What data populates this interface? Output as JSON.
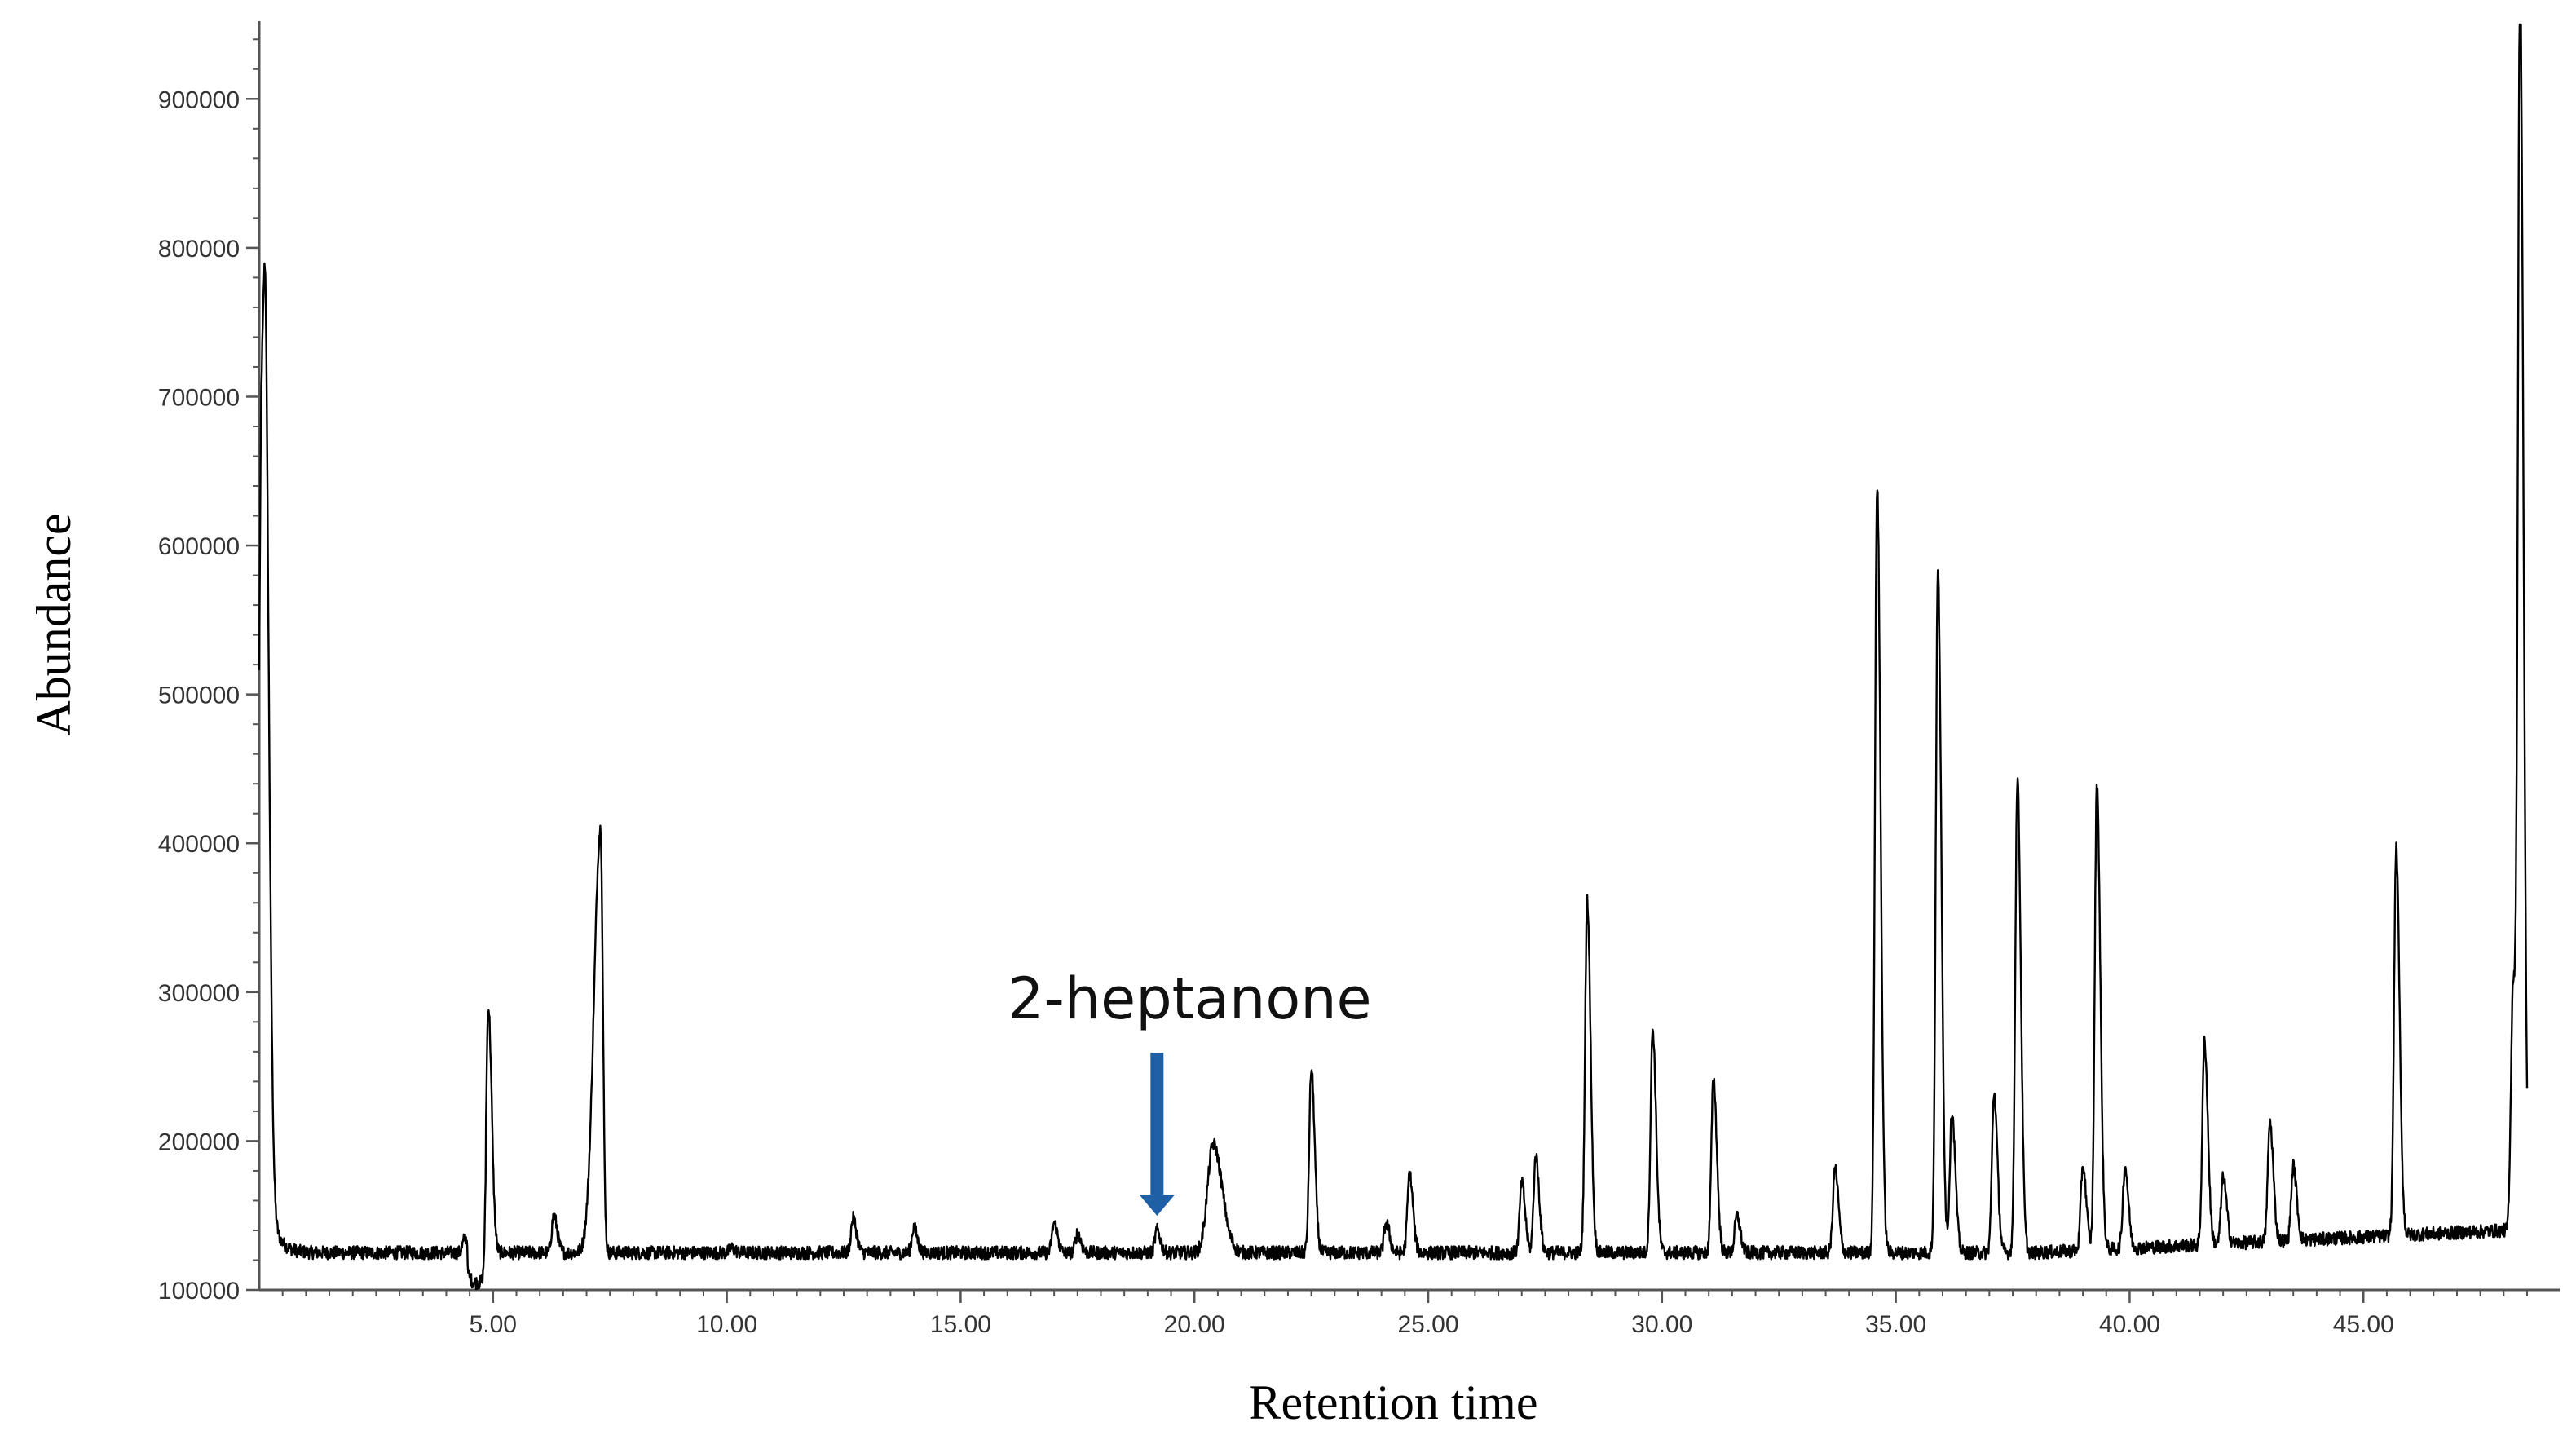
{
  "chart_data": {
    "type": "line",
    "title": "",
    "xlabel": "Retention time",
    "ylabel": "Abundance",
    "xlim": [
      0,
      48.5
    ],
    "ylim": [
      100000,
      950000
    ],
    "x_ticks": [
      {
        "value": 5,
        "label": "5.00"
      },
      {
        "value": 10,
        "label": "10.00"
      },
      {
        "value": 15,
        "label": "15.00"
      },
      {
        "value": 20,
        "label": "20.00"
      },
      {
        "value": 25,
        "label": "25.00"
      },
      {
        "value": 30,
        "label": "30.00"
      },
      {
        "value": 35,
        "label": "35.00"
      },
      {
        "value": 40,
        "label": "40.00"
      },
      {
        "value": 45,
        "label": "45.00"
      }
    ],
    "y_ticks": [
      {
        "value": 100000,
        "label": "100000"
      },
      {
        "value": 200000,
        "label": "200000"
      },
      {
        "value": 300000,
        "label": "300000"
      },
      {
        "value": 400000,
        "label": "400000"
      },
      {
        "value": 500000,
        "label": "500000"
      },
      {
        "value": 600000,
        "label": "600000"
      },
      {
        "value": 700000,
        "label": "700000"
      },
      {
        "value": 800000,
        "label": "800000"
      },
      {
        "value": 900000,
        "label": "900000"
      }
    ],
    "baseline": 125000,
    "peaks": [
      {
        "x": 0.05,
        "y": 580000
      },
      {
        "x": 0.15,
        "y": 480000
      },
      {
        "x": 4.4,
        "y": 135000
      },
      {
        "x": 4.9,
        "y": 290000
      },
      {
        "x": 6.3,
        "y": 150000
      },
      {
        "x": 7.3,
        "y": 410000
      },
      {
        "x": 10.1,
        "y": 128000
      },
      {
        "x": 12.7,
        "y": 148000
      },
      {
        "x": 14.0,
        "y": 142000
      },
      {
        "x": 17.0,
        "y": 145000
      },
      {
        "x": 17.5,
        "y": 138000
      },
      {
        "x": 19.2,
        "y": 140000
      },
      {
        "x": 20.4,
        "y": 198000
      },
      {
        "x": 22.5,
        "y": 248000
      },
      {
        "x": 24.1,
        "y": 145000
      },
      {
        "x": 24.6,
        "y": 178000
      },
      {
        "x": 27.0,
        "y": 172000
      },
      {
        "x": 27.3,
        "y": 190000
      },
      {
        "x": 28.4,
        "y": 362000
      },
      {
        "x": 29.8,
        "y": 275000
      },
      {
        "x": 31.1,
        "y": 242000
      },
      {
        "x": 31.6,
        "y": 150000
      },
      {
        "x": 33.7,
        "y": 182000
      },
      {
        "x": 34.6,
        "y": 640000
      },
      {
        "x": 35.9,
        "y": 582000
      },
      {
        "x": 36.2,
        "y": 220000
      },
      {
        "x": 37.1,
        "y": 232000
      },
      {
        "x": 37.6,
        "y": 443000
      },
      {
        "x": 39.0,
        "y": 182000
      },
      {
        "x": 39.3,
        "y": 438000
      },
      {
        "x": 39.9,
        "y": 180000
      },
      {
        "x": 41.6,
        "y": 262000
      },
      {
        "x": 42.0,
        "y": 170000
      },
      {
        "x": 43.0,
        "y": 205000
      },
      {
        "x": 43.5,
        "y": 175000
      },
      {
        "x": 45.7,
        "y": 385000
      },
      {
        "x": 48.2,
        "y": 290000
      },
      {
        "x": 48.35,
        "y": 950000
      }
    ],
    "annotations": [
      {
        "text": "2-heptanone",
        "x": 19.2,
        "y": 140000,
        "arrow_color": "#1f5fa6"
      }
    ],
    "line_color": "#000000",
    "grid": false,
    "legend": "none"
  }
}
